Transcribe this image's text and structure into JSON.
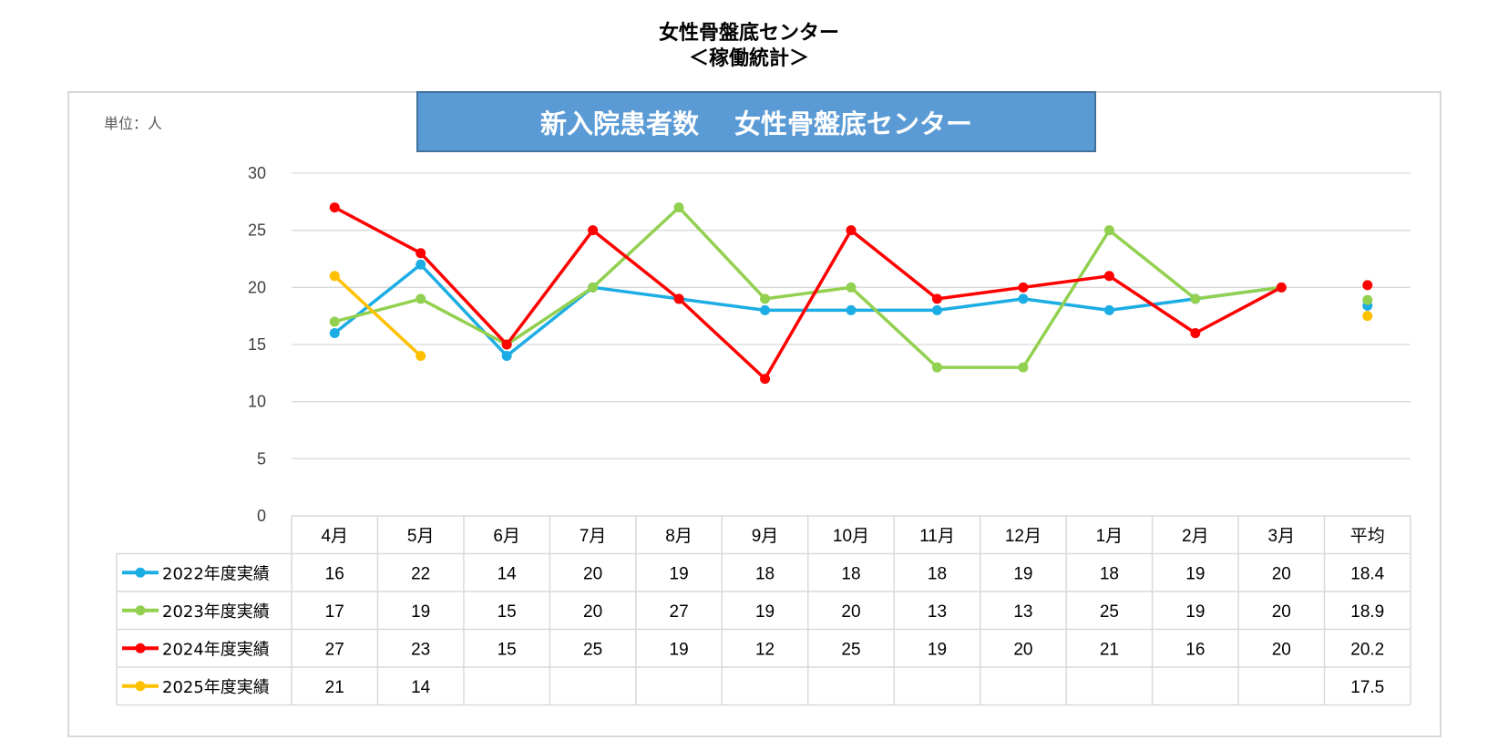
{
  "page": {
    "title_line1": "女性骨盤底センター",
    "title_line2": "＜稼働統計＞"
  },
  "chart_data": {
    "type": "line",
    "title": "新入院患者数　 女性骨盤底センター",
    "unit_label": "単位：人",
    "ylim": [
      0,
      30
    ],
    "yticks": [
      0,
      5,
      10,
      15,
      20,
      25,
      30
    ],
    "grid": true,
    "legend_position": "data-table",
    "categories": [
      "4月",
      "5月",
      "6月",
      "7月",
      "8月",
      "9月",
      "10月",
      "11月",
      "12月",
      "1月",
      "2月",
      "3月"
    ],
    "average_label": "平均",
    "series": [
      {
        "name": "2022年度実績",
        "color": "#1CADE4",
        "values": [
          16,
          22,
          14,
          20,
          19,
          18,
          18,
          18,
          19,
          18,
          19,
          20
        ],
        "average": 18.4
      },
      {
        "name": "2023年度実績",
        "color": "#92D050",
        "values": [
          17,
          19,
          15,
          20,
          27,
          19,
          20,
          13,
          13,
          25,
          19,
          20
        ],
        "average": 18.9
      },
      {
        "name": "2024年度実績",
        "color": "#FF0000",
        "values": [
          27,
          23,
          15,
          25,
          19,
          12,
          25,
          19,
          20,
          21,
          16,
          20
        ],
        "average": 20.2
      },
      {
        "name": "2025年度実績",
        "color": "#FFC000",
        "values": [
          21,
          14,
          null,
          null,
          null,
          null,
          null,
          null,
          null,
          null,
          null,
          null
        ],
        "average": 17.5
      }
    ]
  },
  "colors": {
    "banner_fill": "#5B9BD5",
    "banner_border": "#41719C",
    "grid": "#D9D9D9",
    "table_border": "#D9D9D9",
    "frame": "#D9D9D9"
  }
}
